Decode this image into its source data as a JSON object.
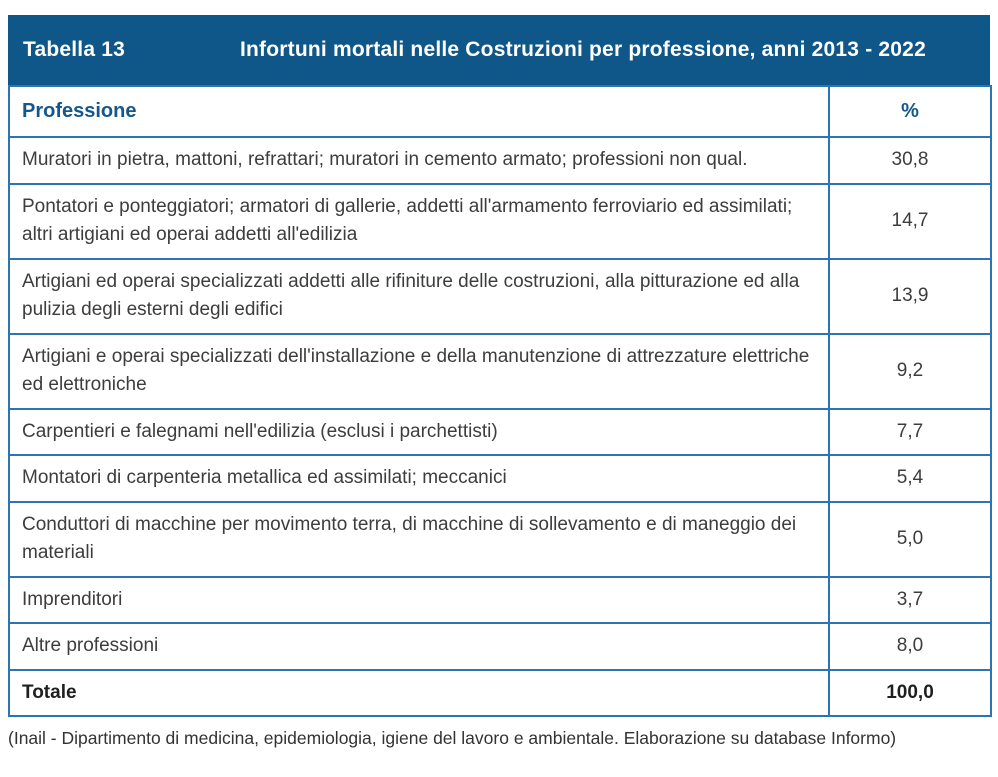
{
  "colors": {
    "band_background": "#0f5689",
    "table_border": "#2d74b4",
    "column_header_text": "#14578c",
    "body_text": "#3d3d3d"
  },
  "title_bar": {
    "label": "Tabella 13",
    "title": "Infortuni mortali nelle Costruzioni per professione, anni 2013 - 2022"
  },
  "table": {
    "columns": {
      "profession": "Professione",
      "percent": "%"
    },
    "rows": [
      {
        "profession": "Muratori in pietra, mattoni, refrattari; muratori in cemento armato; professioni non qual.",
        "percent": "30,8"
      },
      {
        "profession": "Pontatori e ponteggiatori; armatori di gallerie, addetti all'armamento ferroviario ed assimilati; altri artigiani ed operai addetti all'edilizia",
        "percent": "14,7"
      },
      {
        "profession": "Artigiani ed operai specializzati addetti alle rifiniture delle costruzioni, alla pitturazione ed alla pulizia degli esterni degli edifici",
        "percent": "13,9"
      },
      {
        "profession": "Artigiani e operai specializzati dell'installazione e della manutenzione di attrezzature elettriche ed elettroniche",
        "percent": "9,2"
      },
      {
        "profession": "Carpentieri e falegnami nell'edilizia (esclusi i parchettisti)",
        "percent": "7,7"
      },
      {
        "profession": "Montatori di carpenteria metallica ed assimilati; meccanici",
        "percent": "5,4"
      },
      {
        "profession": "Conduttori di macchine per movimento terra, di macchine di sollevamento e di maneggio dei materiali",
        "percent": "5,0"
      },
      {
        "profession": "Imprenditori",
        "percent": "3,7"
      },
      {
        "profession": "Altre professioni",
        "percent": "8,0"
      }
    ],
    "total": {
      "label": "Totale",
      "percent": "100,0"
    }
  },
  "footer": {
    "note": "(Inail - Dipartimento di medicina, epidemiologia, igiene del lavoro e ambientale. Elaborazione su database Informo)"
  }
}
